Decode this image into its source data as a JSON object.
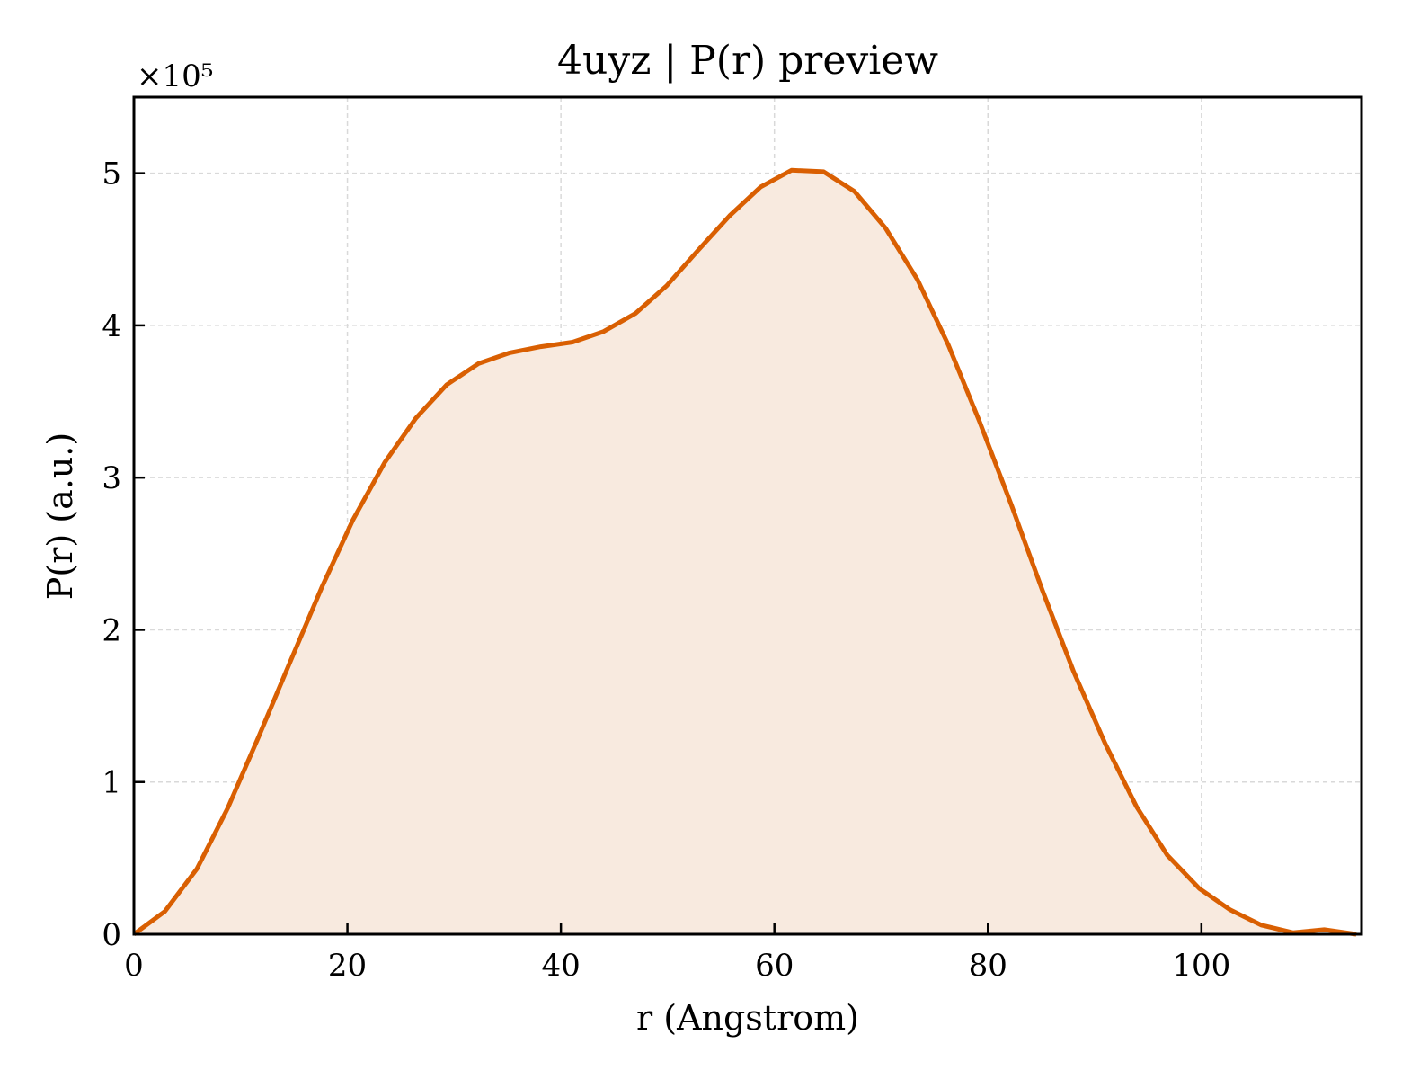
{
  "chart_data": {
    "type": "area",
    "title": "4uyz | P(r) preview",
    "xlabel": "r (Angstrom)",
    "ylabel": "P(r) (a.u.)",
    "y_offset_label": "×10⁵",
    "xlim": [
      0,
      115
    ],
    "ylim": [
      0,
      5.5
    ],
    "y_scale_factor": 100000,
    "xticks": [
      0,
      20,
      40,
      60,
      80,
      100
    ],
    "xtick_labels": [
      "0",
      "20",
      "40",
      "60",
      "80",
      "100"
    ],
    "yticks": [
      0,
      1,
      2,
      3,
      4,
      5
    ],
    "ytick_labels": [
      "0",
      "1",
      "2",
      "3",
      "4",
      "5"
    ],
    "grid": true,
    "line_color": "#d95f02",
    "fill_color": "#f8eadf",
    "series": [
      {
        "x": [
          0,
          2.9,
          5.9,
          8.8,
          11.7,
          14.7,
          17.6,
          20.5,
          23.5,
          26.4,
          29.3,
          32.3,
          35.2,
          38.1,
          41.1,
          44.0,
          47.0,
          49.9,
          52.8,
          55.8,
          58.7,
          61.6,
          64.6,
          67.5,
          70.4,
          73.4,
          76.3,
          79.2,
          82.2,
          85.1,
          88.0,
          91.0,
          93.9,
          96.8,
          99.8,
          102.7,
          105.6,
          108.6,
          111.5,
          114.5
        ],
        "y": [
          0.0,
          0.15,
          0.43,
          0.83,
          1.3,
          1.8,
          2.28,
          2.72,
          3.1,
          3.39,
          3.61,
          3.75,
          3.82,
          3.86,
          3.89,
          3.96,
          4.08,
          4.26,
          4.49,
          4.72,
          4.91,
          5.02,
          5.01,
          4.88,
          4.64,
          4.3,
          3.87,
          3.37,
          2.82,
          2.26,
          1.73,
          1.25,
          0.84,
          0.52,
          0.3,
          0.16,
          0.06,
          0.01,
          0.03,
          0.0
        ]
      }
    ]
  }
}
